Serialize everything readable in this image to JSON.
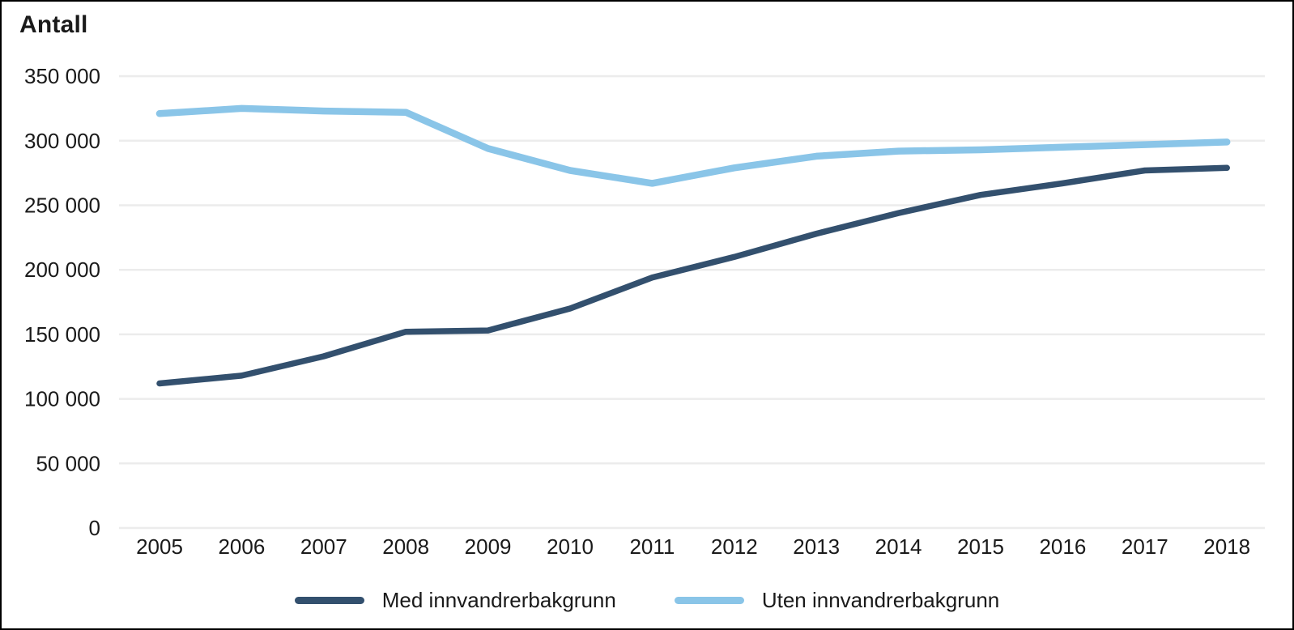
{
  "title": "Antall",
  "colors": {
    "series_dark": "#33506e",
    "series_light": "#8ac5e8",
    "gridline": "#ececec",
    "text": "#1a1a1a",
    "frame_border": "#000000",
    "background": "#ffffff"
  },
  "chart_data": {
    "type": "line",
    "title": "Antall",
    "categories": [
      "2005",
      "2006",
      "2007",
      "2008",
      "2009",
      "2010",
      "2011",
      "2012",
      "2013",
      "2014",
      "2015",
      "2016",
      "2017",
      "2018"
    ],
    "series": [
      {
        "name": "Med innvandrerbakgrunn",
        "color": "#33506e",
        "stroke_width": 7.5,
        "values": [
          112000,
          118000,
          133000,
          152000,
          153000,
          170000,
          194000,
          210000,
          228000,
          244000,
          258000,
          267000,
          277000,
          279000
        ]
      },
      {
        "name": "Uten innvandrerbakgrunn",
        "color": "#8ac5e8",
        "stroke_width": 8.5,
        "values": [
          321000,
          325000,
          323000,
          322000,
          294000,
          277000,
          267000,
          279000,
          288000,
          292000,
          293000,
          295000,
          297000,
          299000
        ]
      }
    ],
    "xlabel": "",
    "ylabel": "Antall",
    "ylim": [
      0,
      350000
    ],
    "ytick_interval": 50000,
    "ytick_labels": [
      "0",
      "50 000",
      "100 000",
      "150 000",
      "200 000",
      "250 000",
      "300 000",
      "350 000"
    ],
    "grid": true,
    "legend_position": "bottom"
  },
  "legend": {
    "items": [
      {
        "label": "Med innvandrerbakgrunn",
        "color": "#33506e"
      },
      {
        "label": "Uten innvandrerbakgrunn",
        "color": "#8ac5e8"
      }
    ]
  }
}
